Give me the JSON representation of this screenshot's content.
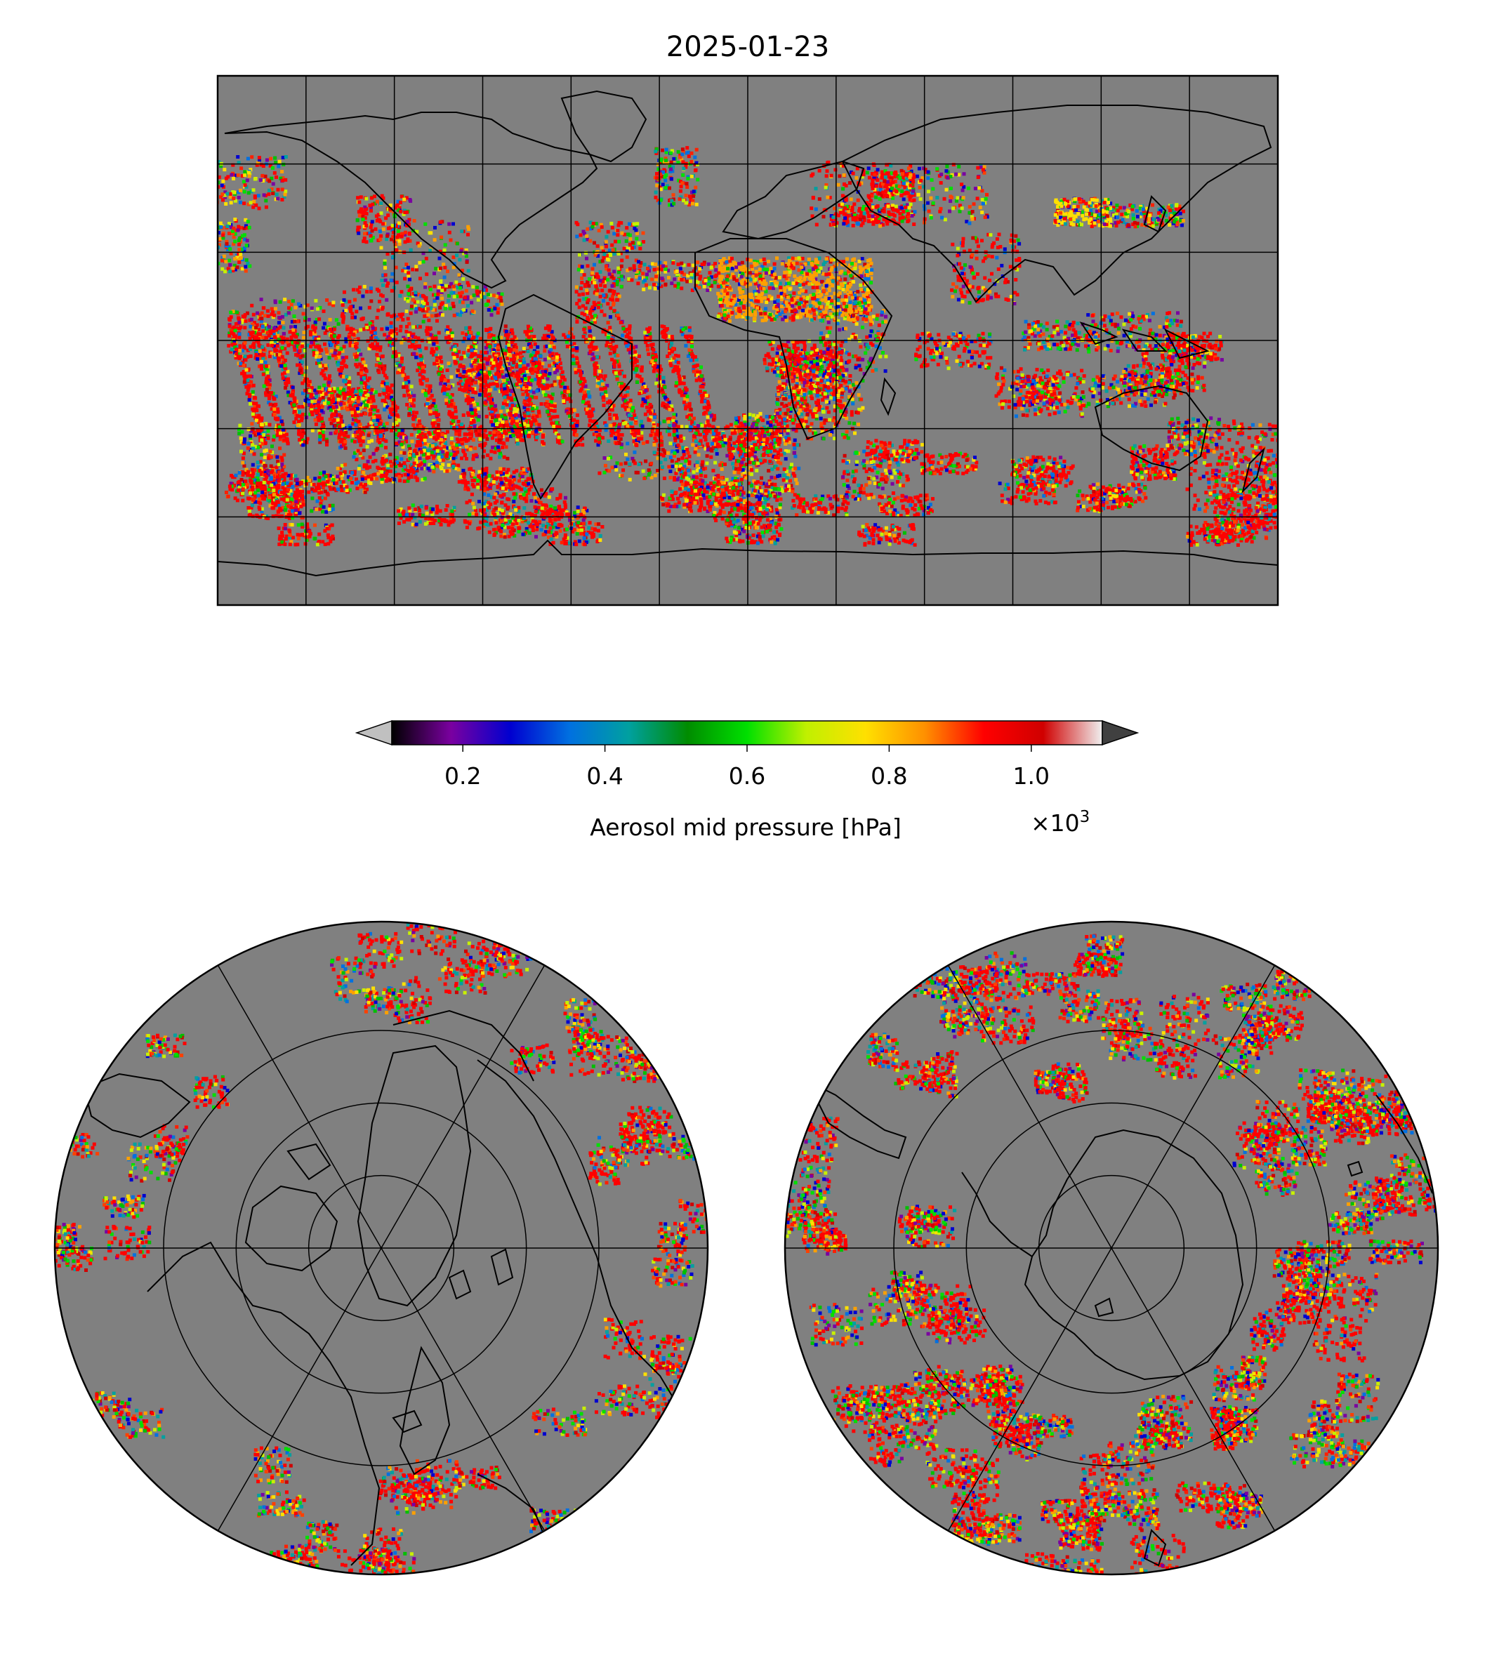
{
  "title": "2025-01-23",
  "colorbar": {
    "label": "Aerosol mid pressure [hPa]",
    "multiplier_base": "×10",
    "multiplier_exp": "3",
    "vmin": 0.1,
    "vmax": 1.1,
    "ticks": [
      "0.2",
      "0.4",
      "0.6",
      "0.8",
      "1.0"
    ],
    "tick_values": [
      0.2,
      0.4,
      0.6,
      0.8,
      1.0
    ],
    "under_color": "#c0c0c0",
    "over_color": "#404040",
    "colormap_stops": [
      "#000000",
      "#7a00a0",
      "#0000d0",
      "#0070e0",
      "#00a0a0",
      "#008c00",
      "#00e000",
      "#c0f000",
      "#ffe000",
      "#ff9000",
      "#ff0000",
      "#d00000",
      "#f0f0f0"
    ]
  },
  "maps": {
    "background_color": "#808080",
    "coastline_color": "#000000",
    "projections": [
      "equirectangular",
      "north-polar-stereographic",
      "south-polar-stereographic"
    ],
    "global_grid": {
      "lon_lines_deg": [
        -150,
        -120,
        -90,
        -60,
        -30,
        0,
        30,
        60,
        90,
        120,
        150
      ],
      "lat_lines_deg": [
        60,
        30,
        0,
        -30,
        -60
      ]
    },
    "polar_grid": {
      "lat_circles_deg": [
        30,
        50,
        70
      ],
      "meridians_deg": [
        0,
        60,
        120,
        180,
        240,
        300
      ]
    }
  }
}
